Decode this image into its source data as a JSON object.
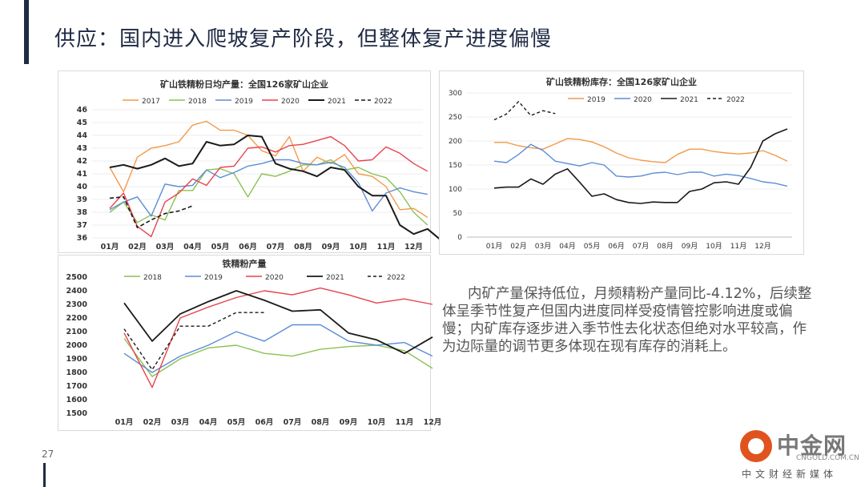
{
  "page": {
    "title": "供应：国内进入爬坡复产阶段，但整体复产进度偏慢",
    "page_number": "27",
    "commentary": "内矿产量保持低位，月频精粉产量同比-4.12%，后续整体呈季节性复产但国内进度同样受疫情管控影响进度或偏慢；内矿库存逐步进入季节性去化状态但绝对水平较高，作为边际量的调节更多体现在现有库存的消耗上。",
    "logo": {
      "main": "中金网",
      "small": "CNGOLD.COM.CN",
      "sub": "中文财经新媒体"
    }
  },
  "chart_data": [
    {
      "id": "daily",
      "type": "line",
      "title": "矿山铁精粉日均产量：全国126家矿山企业",
      "ylim": [
        36,
        46
      ],
      "yticks": [
        36,
        37,
        38,
        39,
        40,
        41,
        42,
        43,
        44,
        45,
        46
      ],
      "xlim": [
        0,
        12
      ],
      "xticks": [
        0,
        1,
        2,
        3,
        4,
        5,
        6,
        7,
        8,
        9,
        10,
        11
      ],
      "xtick_labels": [
        "01月",
        "02月",
        "03月",
        "04月",
        "05月",
        "06月",
        "07月",
        "08月",
        "09月",
        "10月",
        "11月",
        "12月"
      ],
      "series": [
        {
          "name": "2017",
          "color": "#f29a4a",
          "dash": "",
          "width": 1.4,
          "x": [
            0,
            0.5,
            1,
            1.5,
            2,
            2.5,
            3,
            3.5,
            4,
            4.5,
            5,
            5.5,
            6,
            6.5,
            7,
            7.5,
            8,
            8.5,
            9,
            9.5,
            10,
            10.5,
            11,
            11.5
          ],
          "y": [
            41.5,
            39.6,
            42.3,
            43.0,
            43.2,
            43.5,
            44.8,
            45.1,
            44.4,
            44.4,
            44.0,
            42.8,
            42.4,
            43.9,
            41.2,
            42.3,
            41.8,
            42.5,
            41.0,
            40.8,
            40.0,
            38.2,
            38.3,
            37.6
          ]
        },
        {
          "name": "2018",
          "color": "#8cc152",
          "dash": "",
          "width": 1.4,
          "x": [
            0,
            0.5,
            1,
            1.5,
            2,
            2.5,
            3,
            3.5,
            4,
            4.5,
            5,
            5.5,
            6,
            6.5,
            7,
            7.5,
            8,
            8.5,
            9,
            9.5,
            10,
            10.5,
            11,
            11.5
          ],
          "y": [
            38.0,
            38.8,
            37.2,
            37.8,
            37.4,
            39.7,
            39.7,
            41.3,
            41.4,
            41.0,
            39.2,
            41.0,
            40.8,
            41.2,
            41.7,
            41.7,
            42.1,
            41.3,
            41.5,
            41.0,
            40.7,
            39.6,
            38.0,
            37.0
          ]
        },
        {
          "name": "2019",
          "color": "#5b8ed6",
          "dash": "",
          "width": 1.4,
          "x": [
            0,
            0.5,
            1,
            1.5,
            2,
            2.5,
            3,
            3.5,
            4,
            4.5,
            5,
            5.5,
            6,
            6.5,
            7,
            7.5,
            8,
            8.5,
            9,
            9.5,
            10,
            10.5,
            11,
            11.5
          ],
          "y": [
            38.2,
            38.8,
            39.2,
            37.7,
            40.2,
            40.0,
            40.1,
            41.3,
            40.7,
            41.1,
            41.6,
            41.8,
            42.1,
            42.1,
            41.8,
            41.7,
            41.9,
            41.5,
            40.3,
            38.1,
            39.5,
            39.9,
            39.6,
            39.4
          ]
        },
        {
          "name": "2020",
          "color": "#e8424b",
          "dash": "",
          "width": 1.4,
          "x": [
            0,
            0.5,
            1,
            1.5,
            2,
            2.5,
            3,
            3.5,
            4,
            4.5,
            5,
            5.5,
            6,
            6.5,
            7,
            7.5,
            8,
            8.5,
            9,
            9.5,
            10,
            10.5,
            11,
            11.5
          ],
          "y": [
            38.3,
            39.5,
            36.9,
            36.1,
            38.8,
            39.5,
            40.6,
            40.1,
            41.5,
            41.6,
            43.0,
            43.1,
            42.7,
            43.2,
            43.3,
            43.6,
            43.9,
            43.2,
            42.0,
            42.1,
            43.1,
            42.6,
            41.8,
            41.2
          ]
        },
        {
          "name": "2021",
          "color": "#1a1a1a",
          "dash": "",
          "width": 2.0,
          "x": [
            0,
            0.5,
            1,
            1.5,
            2,
            2.5,
            3,
            3.5,
            4,
            4.5,
            5,
            5.5,
            6,
            6.5,
            7,
            7.5,
            8,
            8.5,
            9,
            9.5,
            10,
            10.5,
            11,
            11.5,
            12
          ],
          "y": [
            41.5,
            41.7,
            41.4,
            41.7,
            42.2,
            41.6,
            41.8,
            43.5,
            43.2,
            43.3,
            44.0,
            43.9,
            41.8,
            41.4,
            41.2,
            40.8,
            41.5,
            41.3,
            40.0,
            39.3,
            39.3,
            37.0,
            36.3,
            36.7,
            35.8
          ]
        },
        {
          "name": "2022",
          "color": "#1a1a1a",
          "dash": "5,3",
          "width": 1.6,
          "x": [
            0,
            0.5,
            1,
            1.5,
            2,
            2.5,
            3
          ],
          "y": [
            39.1,
            39.2,
            36.8,
            37.4,
            37.9,
            38.1,
            38.5
          ]
        }
      ]
    },
    {
      "id": "stock",
      "type": "line",
      "title": "矿山铁精粉库存：全国126家矿山企业",
      "ylim": [
        0,
        300
      ],
      "yticks": [
        0,
        50,
        100,
        150,
        200,
        250,
        300
      ],
      "xlim": [
        0,
        13
      ],
      "xticks": [
        0,
        1,
        2,
        3,
        4,
        5,
        6,
        7,
        8,
        9,
        10,
        11
      ],
      "xtick_labels": [
        "01月",
        "02月",
        "03月",
        "04月",
        "05月",
        "06月",
        "07月",
        "08月",
        "09月",
        "10月",
        "11月",
        "12月"
      ],
      "series": [
        {
          "name": "2019",
          "color": "#f29a4a",
          "dash": "",
          "width": 1.4,
          "x": [
            0,
            0.5,
            1,
            1.5,
            2,
            2.5,
            3,
            3.5,
            4,
            4.5,
            5,
            5.5,
            6,
            6.5,
            7,
            7.5,
            8,
            8.5,
            9,
            9.5,
            10,
            10.5,
            11,
            11.5,
            12
          ],
          "y": [
            197,
            197,
            190,
            186,
            183,
            194,
            205,
            203,
            198,
            188,
            175,
            165,
            160,
            157,
            155,
            172,
            183,
            183,
            178,
            175,
            173,
            175,
            180,
            170,
            158
          ]
        },
        {
          "name": "2020",
          "color": "#5b8ed6",
          "dash": "",
          "width": 1.4,
          "x": [
            0,
            0.5,
            1,
            1.5,
            2,
            2.5,
            3,
            3.5,
            4,
            4.5,
            5,
            5.5,
            6,
            6.5,
            7,
            7.5,
            8,
            8.5,
            9,
            9.5,
            10,
            10.5,
            11,
            11.5,
            12
          ],
          "y": [
            158,
            155,
            172,
            193,
            180,
            158,
            153,
            148,
            155,
            150,
            127,
            125,
            127,
            133,
            135,
            130,
            135,
            135,
            127,
            131,
            128,
            122,
            115,
            112,
            106
          ]
        },
        {
          "name": "2021",
          "color": "#1a1a1a",
          "dash": "",
          "width": 1.6,
          "x": [
            0,
            0.5,
            1,
            1.5,
            2,
            2.5,
            3,
            3.5,
            4,
            4.5,
            5,
            5.5,
            6,
            6.5,
            7,
            7.5,
            8,
            8.5,
            9,
            9.5,
            10,
            10.5,
            11,
            11.5,
            12
          ],
          "y": [
            102,
            104,
            104,
            121,
            110,
            131,
            142,
            114,
            85,
            90,
            78,
            72,
            70,
            73,
            72,
            72,
            95,
            100,
            113,
            115,
            110,
            145,
            200,
            215,
            225
          ]
        },
        {
          "name": "2022",
          "color": "#1a1a1a",
          "dash": "4,3",
          "width": 1.4,
          "x": [
            0,
            0.5,
            1,
            1.5,
            2,
            2.5
          ],
          "y": [
            244,
            256,
            282,
            253,
            263,
            257
          ]
        }
      ]
    },
    {
      "id": "monthly",
      "type": "line",
      "title": "铁精粉产量",
      "ylim": [
        1500,
        2500
      ],
      "yticks": [
        1500,
        1600,
        1700,
        1800,
        1900,
        2000,
        2100,
        2200,
        2300,
        2400,
        2500
      ],
      "xlim": [
        0,
        12
      ],
      "xticks": [
        0,
        1,
        2,
        3,
        4,
        5,
        6,
        7,
        8,
        9,
        10,
        11
      ],
      "xtick_labels": [
        "01月",
        "02月",
        "03月",
        "04月",
        "05月",
        "06月",
        "07月",
        "08月",
        "09月",
        "10月",
        "11月",
        "12月"
      ],
      "series": [
        {
          "name": "2018",
          "color": "#8cc152",
          "dash": "",
          "width": 1.4,
          "x": [
            0,
            1,
            2,
            3,
            4,
            5,
            6,
            7,
            8,
            9,
            10,
            11
          ],
          "y": [
            2050,
            1770,
            1900,
            1980,
            2000,
            1940,
            1920,
            1970,
            1990,
            2000,
            1960,
            1830
          ]
        },
        {
          "name": "2019",
          "color": "#5b8ed6",
          "dash": "",
          "width": 1.4,
          "x": [
            0,
            1,
            2,
            3,
            4,
            5,
            6,
            7,
            8,
            9,
            10,
            11
          ],
          "y": [
            1940,
            1800,
            1920,
            2000,
            2100,
            2030,
            2150,
            2150,
            2030,
            2000,
            2020,
            1920
          ]
        },
        {
          "name": "2020",
          "color": "#e8424b",
          "dash": "",
          "width": 1.4,
          "x": [
            0,
            1,
            2,
            3,
            4,
            5,
            6,
            7,
            8,
            9,
            10,
            11
          ],
          "y": [
            2090,
            1690,
            2200,
            2280,
            2350,
            2400,
            2370,
            2420,
            2370,
            2310,
            2340,
            2300
          ]
        },
        {
          "name": "2021",
          "color": "#1a1a1a",
          "dash": "",
          "width": 1.8,
          "x": [
            0,
            1,
            2,
            3,
            4,
            5,
            6,
            7,
            8,
            9,
            10,
            11
          ],
          "y": [
            2310,
            2030,
            2230,
            2320,
            2400,
            2330,
            2250,
            2260,
            2090,
            2040,
            1940,
            2060
          ]
        },
        {
          "name": "2022",
          "color": "#1a1a1a",
          "dash": "4,3",
          "width": 1.4,
          "x": [
            0,
            1,
            2,
            3,
            4,
            5
          ],
          "y": [
            2120,
            1820,
            2140,
            2140,
            2240,
            2240
          ]
        }
      ]
    }
  ]
}
